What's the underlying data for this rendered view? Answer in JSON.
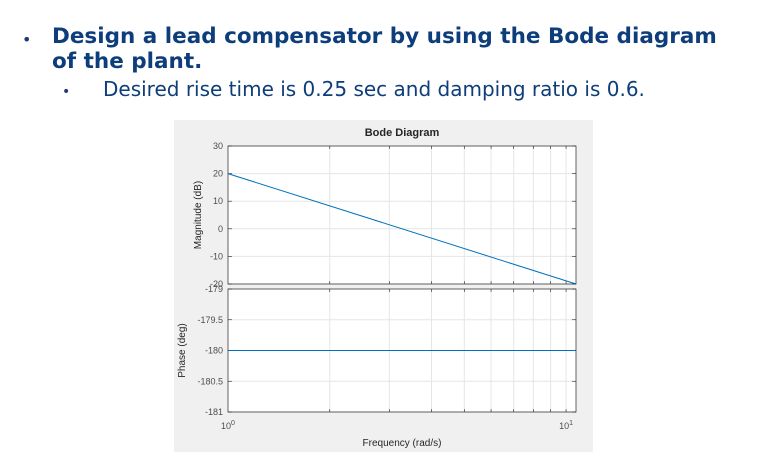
{
  "slide": {
    "bullet_symbol": "•",
    "heading": "Design a lead compensator by using the Bode diagram of the plant.",
    "sub_bullet_symbol": "•",
    "subtext": "Desired rise time is 0.25 sec and damping ratio is 0.6."
  },
  "chart_data": {
    "type": "line",
    "title": "Bode Diagram",
    "xlabel": "Frequency  (rad/s)",
    "x_scale": "log",
    "xlim": [
      1,
      10.7
    ],
    "x_ticks": [
      {
        "base": "10",
        "exp": "0"
      },
      {
        "base": "10",
        "exp": "1"
      }
    ],
    "grid": true,
    "line_color": "#0072bd",
    "subplots": [
      {
        "name": "magnitude",
        "ylabel": "Magnitude (dB)",
        "ylim": [
          -20,
          30
        ],
        "yticks": [
          "30",
          "20",
          "10",
          "0",
          "-10",
          "-20"
        ],
        "x": [
          1,
          10.7
        ],
        "y": [
          20,
          -20
        ]
      },
      {
        "name": "phase",
        "ylabel": "Phase (deg)",
        "ylim": [
          -181,
          -179
        ],
        "yticks": [
          "-179",
          "-179.5",
          "-180",
          "-180.5",
          "-181"
        ],
        "x": [
          1,
          10.7
        ],
        "y": [
          -180,
          -180
        ]
      }
    ]
  }
}
